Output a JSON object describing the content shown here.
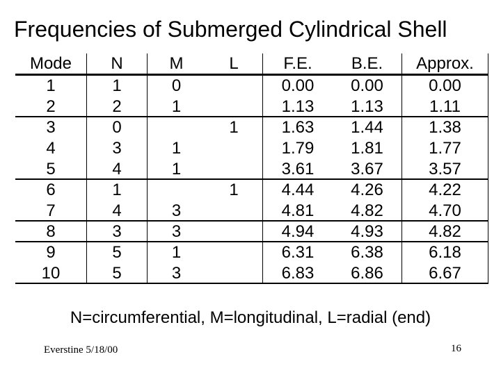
{
  "slide": {
    "title": "Frequencies of Submerged Cylindrical Shell",
    "footnote": "N=circumferential, M=longitudinal, L=radial (end)",
    "footer_left": "Everstine 5/18/00",
    "page_number": "16"
  },
  "colors": {
    "background": "#ffffff",
    "text": "#000000",
    "table_lines": "#000000"
  },
  "table": {
    "headers": {
      "mode": "Mode",
      "n": "N",
      "m": "M",
      "l": "L",
      "fe": "F.E.",
      "be": "B.E.",
      "approx": "Approx."
    },
    "rows": [
      {
        "mode": "1",
        "n": "1",
        "m": "0",
        "l": "",
        "fe": "0.00",
        "be": "0.00",
        "approx": "0.00"
      },
      {
        "mode": "2",
        "n": "2",
        "m": "1",
        "l": "",
        "fe": "1.13",
        "be": "1.13",
        "approx": "1.11"
      },
      {
        "mode": "3",
        "n": "0",
        "m": "",
        "l": "1",
        "fe": "1.63",
        "be": "1.44",
        "approx": "1.38"
      },
      {
        "mode": "4",
        "n": "3",
        "m": "1",
        "l": "",
        "fe": "1.79",
        "be": "1.81",
        "approx": "1.77"
      },
      {
        "mode": "5",
        "n": "4",
        "m": "1",
        "l": "",
        "fe": "3.61",
        "be": "3.67",
        "approx": "3.57"
      },
      {
        "mode": "6",
        "n": "1",
        "m": "",
        "l": "1",
        "fe": "4.44",
        "be": "4.26",
        "approx": "4.22"
      },
      {
        "mode": "7",
        "n": "4",
        "m": "3",
        "l": "",
        "fe": "4.81",
        "be": "4.82",
        "approx": "4.70"
      },
      {
        "mode": "8",
        "n": "3",
        "m": "3",
        "l": "",
        "fe": "4.94",
        "be": "4.93",
        "approx": "4.82"
      },
      {
        "mode": "9",
        "n": "5",
        "m": "1",
        "l": "",
        "fe": "6.31",
        "be": "6.38",
        "approx": "6.18"
      },
      {
        "mode": "10",
        "n": "5",
        "m": "3",
        "l": "",
        "fe": "6.83",
        "be": "6.86",
        "approx": "6.67"
      }
    ]
  }
}
